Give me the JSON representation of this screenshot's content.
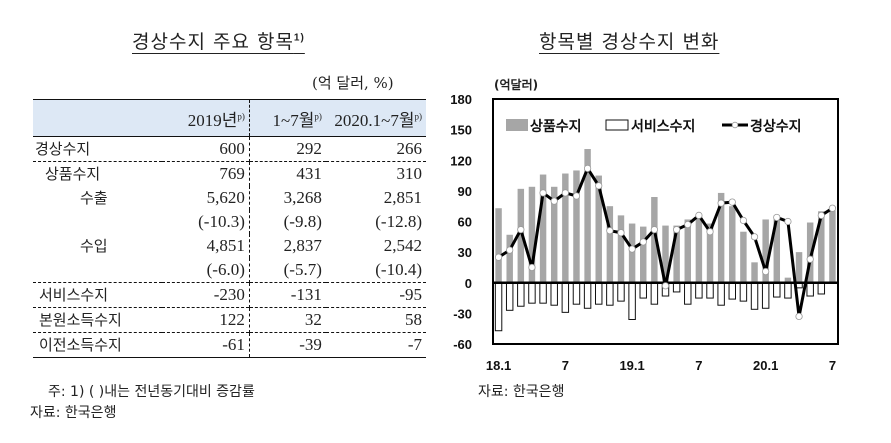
{
  "left": {
    "title": "경상수지 주요 항목",
    "title_sup": "1)",
    "unit": "(억 달러, %)",
    "columns": [
      {
        "label": "",
        "sup": ""
      },
      {
        "label": "2019년",
        "sup": "p)"
      },
      {
        "label": "1~7월",
        "sup": "p)"
      },
      {
        "label": "2020.1~7월",
        "sup": "p)"
      }
    ],
    "rows": [
      {
        "label": "경상수지",
        "values": [
          "600",
          "292",
          "266"
        ]
      },
      {
        "label": "상품수지",
        "values": [
          "769",
          "431",
          "310"
        ]
      },
      {
        "label": "수출",
        "values": [
          "5,620",
          "3,268",
          "2,851"
        ]
      },
      {
        "label": "",
        "values": [
          "(-10.3)",
          "(-9.8)",
          "(-12.8)"
        ]
      },
      {
        "label": "수입",
        "values": [
          "4,851",
          "2,837",
          "2,542"
        ]
      },
      {
        "label": "",
        "values": [
          "(-6.0)",
          "(-5.7)",
          "(-10.4)"
        ]
      },
      {
        "label": "서비스수지",
        "values": [
          "-230",
          "-131",
          "-95"
        ]
      },
      {
        "label": "본원소득수지",
        "values": [
          "122",
          "32",
          "58"
        ]
      },
      {
        "label": "이전소득수지",
        "values": [
          "-61",
          "-39",
          "-7"
        ]
      }
    ],
    "note": "주: 1) (   )내는 전년동기대비 증감률",
    "source": "자료: 한국은행"
  },
  "right": {
    "title": "항목별 경상수지 변화",
    "source": "자료: 한국은행"
  },
  "chart_data": {
    "type": "bar",
    "title": "항목별 경상수지 변화",
    "ylabel": "(억달러)",
    "xlabel": "",
    "ylim": [
      -60,
      180
    ],
    "yticks": [
      180,
      150,
      120,
      90,
      60,
      30,
      0,
      -30,
      -60
    ],
    "xtick_labels": [
      {
        "index": 0,
        "label": "18.1"
      },
      {
        "index": 6,
        "label": "7"
      },
      {
        "index": 12,
        "label": "19.1"
      },
      {
        "index": 18,
        "label": "7"
      },
      {
        "index": 24,
        "label": "20.1"
      },
      {
        "index": 30,
        "label": "7"
      }
    ],
    "legend": [
      "상품수지",
      "서비스수지",
      "경상수지"
    ],
    "legend_position": "top-left inside",
    "grid": false,
    "categories": [
      "18.1",
      "18.2",
      "18.3",
      "18.4",
      "18.5",
      "18.6",
      "18.7",
      "18.8",
      "18.9",
      "18.10",
      "18.11",
      "18.12",
      "19.1",
      "19.2",
      "19.3",
      "19.4",
      "19.5",
      "19.6",
      "19.7",
      "19.8",
      "19.9",
      "19.10",
      "19.11",
      "19.12",
      "20.1",
      "20.2",
      "20.3",
      "20.4",
      "20.5",
      "20.6",
      "20.7"
    ],
    "series": [
      {
        "name": "상품수지",
        "type": "bar",
        "color": "#a6a6a6",
        "values": [
          73,
          47,
          92,
          94,
          106,
          94,
          107,
          110,
          131,
          105,
          75,
          66,
          58,
          55,
          84,
          56,
          56,
          62,
          66,
          58,
          88,
          75,
          50,
          20,
          62,
          66,
          5,
          30,
          59,
          70,
          71
        ]
      },
      {
        "name": "서비스수지",
        "type": "bar",
        "color": "#ffffff",
        "values": [
          -47,
          -27,
          -23,
          -20,
          -20,
          -22,
          -29,
          -21,
          -25,
          -21,
          -22,
          -18,
          -36,
          -15,
          -21,
          -13,
          -9,
          -21,
          -15,
          -15,
          -22,
          -16,
          -18,
          -26,
          -25,
          -14,
          -15,
          -5,
          -13,
          -11,
          0
        ]
      },
      {
        "name": "경상수지",
        "type": "line",
        "color": "#000000",
        "values": [
          25,
          32,
          52,
          15,
          88,
          80,
          88,
          85,
          112,
          95,
          51,
          49,
          33,
          40,
          52,
          -3,
          52,
          57,
          66,
          50,
          78,
          79,
          61,
          45,
          11,
          64,
          60,
          -33,
          23,
          66,
          73
        ]
      }
    ]
  }
}
